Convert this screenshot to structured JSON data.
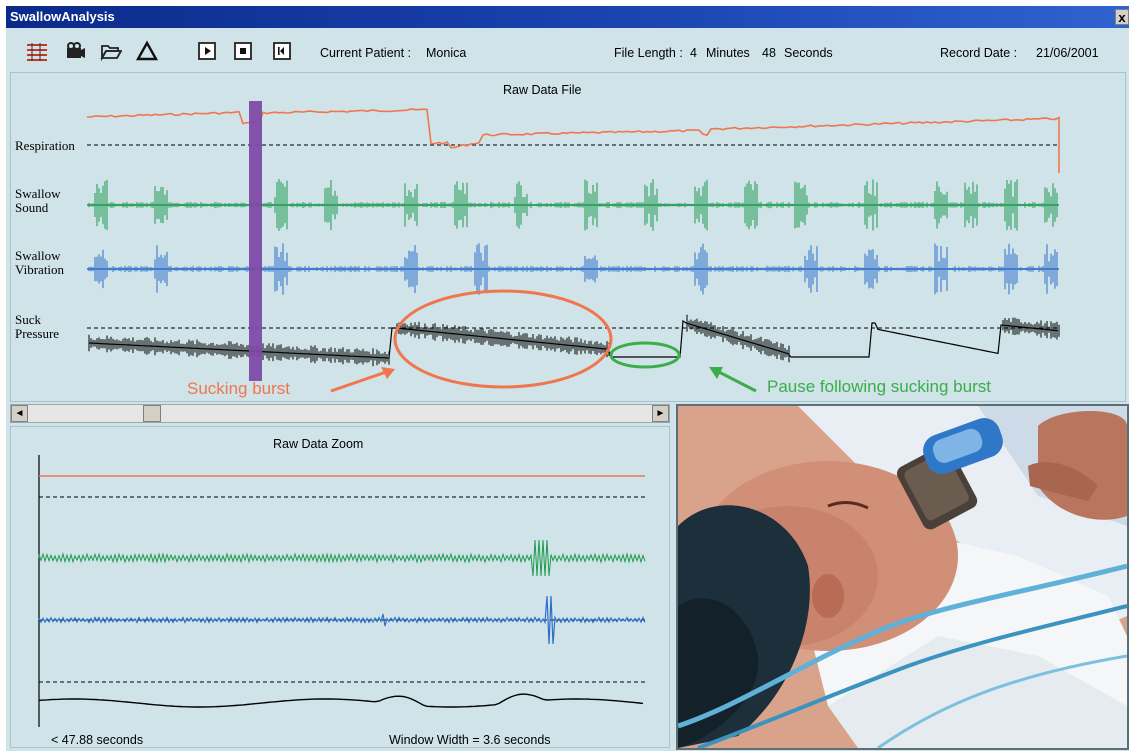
{
  "window": {
    "title": "SwallowAnalysis",
    "close_label": "x"
  },
  "toolbar": {
    "icons": [
      "chart-grid-icon",
      "camera-icon",
      "open-folder-icon",
      "triangle-icon",
      "play-icon",
      "stop-icon",
      "rewind-icon"
    ],
    "current_patient_label": "Current Patient :",
    "current_patient_value": "Monica",
    "file_length_label": "File Length :",
    "file_length_minutes": "4",
    "minutes_word": "Minutes",
    "file_length_seconds": "48",
    "seconds_word": "Seconds",
    "record_date_label": "Record Date :",
    "record_date_value": "21/06/2001"
  },
  "raw_panel": {
    "title": "Raw Data File",
    "channels": [
      {
        "label": "Respiration",
        "color": "#f0764d"
      },
      {
        "label": "Swallow\nSound",
        "color": "#1e9a4e"
      },
      {
        "label": "Swallow\nVibration",
        "color": "#2c6fc9"
      },
      {
        "label": "Suck\nPressure",
        "color": "#000000"
      }
    ],
    "marker_color": "#7e4aa6",
    "annotations": {
      "sucking_burst": {
        "text": "Sucking burst",
        "color": "#f0764d"
      },
      "pause": {
        "text": "Pause following sucking burst",
        "color": "#3aae49"
      }
    }
  },
  "scrollbar": {
    "left_arrow": "◄",
    "right_arrow": "►",
    "position_fraction": 0.2
  },
  "zoom_panel": {
    "title": "Raw Data Zoom",
    "time_label": "< 47.88 seconds",
    "window_width_label": "Window Width = 3.6 seconds"
  },
  "photo": {
    "description_icon": "infant-feeding-photo"
  }
}
